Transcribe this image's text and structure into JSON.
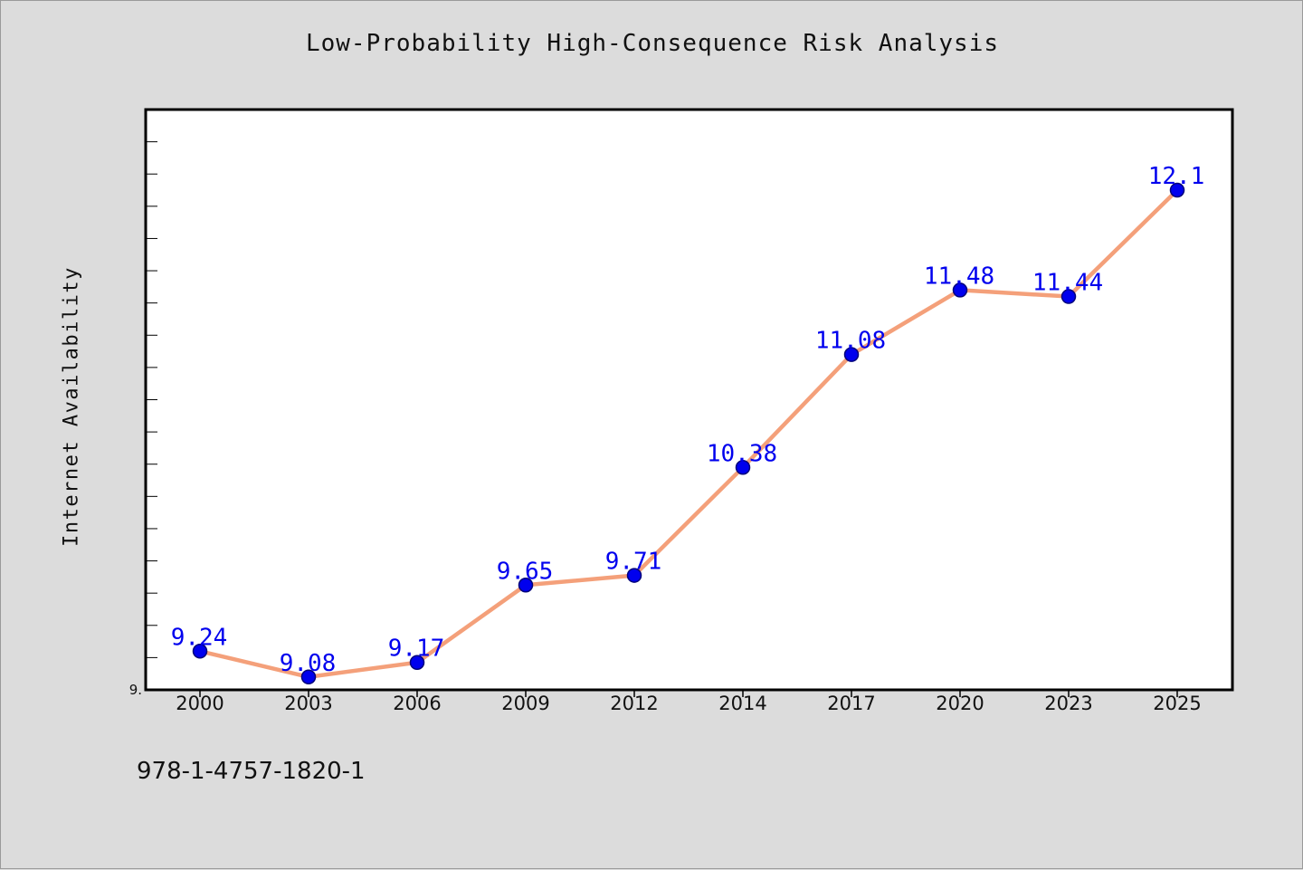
{
  "chart_data": {
    "type": "line",
    "title": "Low-Probability High-Consequence Risk Analysis",
    "xlabel": "",
    "ylabel": "Internet Availability",
    "categories": [
      "2000",
      "2003",
      "2006",
      "2009",
      "2012",
      "2014",
      "2017",
      "2020",
      "2023",
      "2025"
    ],
    "series": [
      {
        "values": [
          9.24,
          9.08,
          9.17,
          9.65,
          9.71,
          10.38,
          11.08,
          11.48,
          11.44,
          12.1
        ]
      }
    ],
    "data_labels": [
      "9.24",
      "9.08",
      "9.17",
      "9.65",
      "9.71",
      "10.38",
      "11.08",
      "11.48",
      "11.44",
      "12.1"
    ],
    "y_tick_labels": [
      "9."
    ],
    "ylim": [
      9.0,
      12.6
    ],
    "grid": false,
    "legend": "none",
    "colors": {
      "line": "#f4a07a",
      "marker": "#0000ee",
      "marker_edge": "#00007a",
      "data_label": "#0000ee",
      "plot_background": "#ffffff",
      "page_background": "#dcdcdc"
    }
  },
  "footer": {
    "code": "978-1-4757-1820-1"
  }
}
